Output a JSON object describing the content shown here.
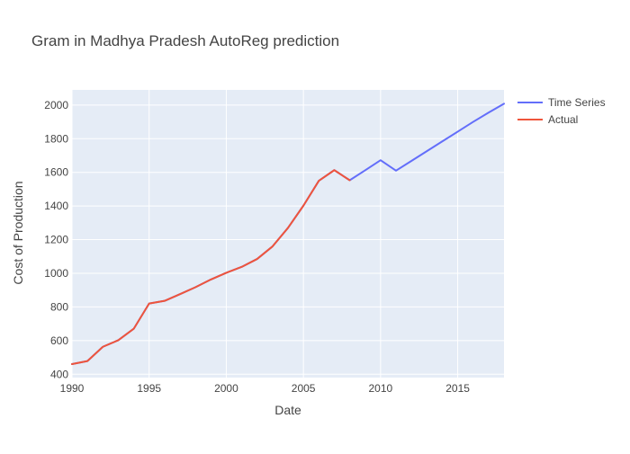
{
  "chart_data": {
    "type": "line",
    "title": "Gram in Madhya Pradesh AutoReg prediction",
    "xlabel": "Date",
    "ylabel": "Cost of Production",
    "xlim": [
      1990,
      2018
    ],
    "ylim": [
      380,
      2090
    ],
    "xticks": [
      1990,
      1995,
      2000,
      2005,
      2010,
      2015
    ],
    "yticks": [
      400,
      600,
      800,
      1000,
      1200,
      1400,
      1600,
      1800,
      2000
    ],
    "grid": true,
    "legend_position": "top-right",
    "series": [
      {
        "name": "Time Series",
        "color": "#636efa",
        "x": [
          1990,
          1991,
          1992,
          1993,
          1994,
          1995,
          1996,
          1997,
          1998,
          1999,
          2000,
          2001,
          2002,
          2003,
          2004,
          2005,
          2006,
          2007,
          2008,
          2009,
          2010,
          2011,
          2012,
          2013,
          2014,
          2015,
          2016,
          2017,
          2018
        ],
        "y": [
          460,
          478,
          563,
          602,
          670,
          820,
          836,
          876,
          917,
          963,
          1003,
          1038,
          1085,
          1160,
          1270,
          1402,
          1550,
          1613,
          1553,
          1612,
          1672,
          1610,
          1668,
          1726,
          1784,
          1842,
          1900,
          1955,
          2008
        ]
      },
      {
        "name": "Actual",
        "color": "#ef553b",
        "x": [
          1990,
          1991,
          1992,
          1993,
          1994,
          1995,
          1996,
          1997,
          1998,
          1999,
          2000,
          2001,
          2002,
          2003,
          2004,
          2005,
          2006,
          2007,
          2008
        ],
        "y": [
          460,
          478,
          563,
          602,
          670,
          820,
          836,
          876,
          917,
          963,
          1003,
          1038,
          1085,
          1160,
          1270,
          1402,
          1550,
          1613,
          1553
        ]
      }
    ]
  }
}
